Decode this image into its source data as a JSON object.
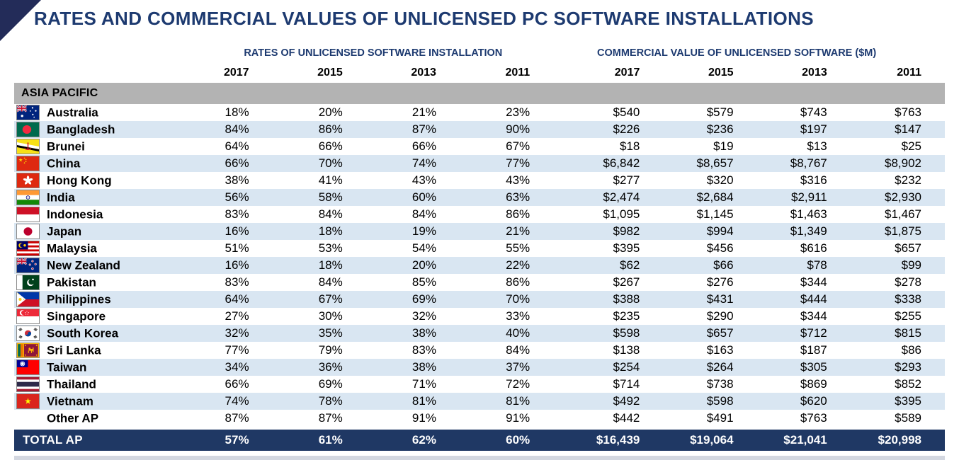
{
  "title": "RATES AND COMMERCIAL VALUES OF UNLICENSED PC SOFTWARE INSTALLATIONS",
  "group_headers": {
    "rates": "RATES OF UNLICENSED SOFTWARE INSTALLATION",
    "values": "COMMERCIAL VALUE OF UNLICENSED SOFTWARE ($M)"
  },
  "years": [
    "2017",
    "2015",
    "2013",
    "2011"
  ],
  "region": {
    "label": "ASIA PACIFIC"
  },
  "rows": [
    {
      "country": "Australia",
      "flag": "au",
      "rates": [
        "18%",
        "20%",
        "21%",
        "23%"
      ],
      "values": [
        "$540",
        "$579",
        "$743",
        "$763"
      ]
    },
    {
      "country": "Bangladesh",
      "flag": "bd",
      "rates": [
        "84%",
        "86%",
        "87%",
        "90%"
      ],
      "values": [
        "$226",
        "$236",
        "$197",
        "$147"
      ]
    },
    {
      "country": "Brunei",
      "flag": "bn",
      "rates": [
        "64%",
        "66%",
        "66%",
        "67%"
      ],
      "values": [
        "$18",
        "$19",
        "$13",
        "$25"
      ]
    },
    {
      "country": "China",
      "flag": "cn",
      "rates": [
        "66%",
        "70%",
        "74%",
        "77%"
      ],
      "values": [
        "$6,842",
        "$8,657",
        "$8,767",
        "$8,902"
      ]
    },
    {
      "country": "Hong Kong",
      "flag": "hk",
      "rates": [
        "38%",
        "41%",
        "43%",
        "43%"
      ],
      "values": [
        "$277",
        "$320",
        "$316",
        "$232"
      ]
    },
    {
      "country": "India",
      "flag": "in",
      "rates": [
        "56%",
        "58%",
        "60%",
        "63%"
      ],
      "values": [
        "$2,474",
        "$2,684",
        "$2,911",
        "$2,930"
      ]
    },
    {
      "country": "Indonesia",
      "flag": "id",
      "rates": [
        "83%",
        "84%",
        "84%",
        "86%"
      ],
      "values": [
        "$1,095",
        "$1,145",
        "$1,463",
        "$1,467"
      ]
    },
    {
      "country": "Japan",
      "flag": "jp",
      "rates": [
        "16%",
        "18%",
        "19%",
        "21%"
      ],
      "values": [
        "$982",
        "$994",
        "$1,349",
        "$1,875"
      ]
    },
    {
      "country": "Malaysia",
      "flag": "my",
      "rates": [
        "51%",
        "53%",
        "54%",
        "55%"
      ],
      "values": [
        "$395",
        "$456",
        "$616",
        "$657"
      ]
    },
    {
      "country": "New Zealand",
      "flag": "nz",
      "rates": [
        "16%",
        "18%",
        "20%",
        "22%"
      ],
      "values": [
        "$62",
        "$66",
        "$78",
        "$99"
      ]
    },
    {
      "country": "Pakistan",
      "flag": "pk",
      "rates": [
        "83%",
        "84%",
        "85%",
        "86%"
      ],
      "values": [
        "$267",
        "$276",
        "$344",
        "$278"
      ]
    },
    {
      "country": "Philippines",
      "flag": "ph",
      "rates": [
        "64%",
        "67%",
        "69%",
        "70%"
      ],
      "values": [
        "$388",
        "$431",
        "$444",
        "$338"
      ]
    },
    {
      "country": "Singapore",
      "flag": "sg",
      "rates": [
        "27%",
        "30%",
        "32%",
        "33%"
      ],
      "values": [
        "$235",
        "$290",
        "$344",
        "$255"
      ]
    },
    {
      "country": "South Korea",
      "flag": "kr",
      "rates": [
        "32%",
        "35%",
        "38%",
        "40%"
      ],
      "values": [
        "$598",
        "$657",
        "$712",
        "$815"
      ]
    },
    {
      "country": "Sri Lanka",
      "flag": "lk",
      "rates": [
        "77%",
        "79%",
        "83%",
        "84%"
      ],
      "values": [
        "$138",
        "$163",
        "$187",
        "$86"
      ]
    },
    {
      "country": "Taiwan",
      "flag": "tw",
      "rates": [
        "34%",
        "36%",
        "38%",
        "37%"
      ],
      "values": [
        "$254",
        "$264",
        "$305",
        "$293"
      ]
    },
    {
      "country": "Thailand",
      "flag": "th",
      "rates": [
        "66%",
        "69%",
        "71%",
        "72%"
      ],
      "values": [
        "$714",
        "$738",
        "$869",
        "$852"
      ]
    },
    {
      "country": "Vietnam",
      "flag": "vn",
      "rates": [
        "74%",
        "78%",
        "81%",
        "81%"
      ],
      "values": [
        "$492",
        "$598",
        "$620",
        "$395"
      ]
    },
    {
      "country": "Other AP",
      "flag": null,
      "rates": [
        "87%",
        "87%",
        "91%",
        "91%"
      ],
      "values": [
        "$442",
        "$491",
        "$763",
        "$589"
      ]
    }
  ],
  "total": {
    "label": "TOTAL AP",
    "rates": [
      "57%",
      "61%",
      "62%",
      "60%"
    ],
    "values": [
      "$16,439",
      "$19,064",
      "$21,041",
      "$20,998"
    ]
  },
  "colors": {
    "accent_navy": "#1d3a70",
    "corner_triangle": "#232c59",
    "region_band_bg": "#b3b3b3",
    "row_stripe": "#d9e6f2",
    "total_row_bg": "#1f3864",
    "flag_border": "#8a8a8a",
    "next_section_band": "#d3d7e0"
  }
}
